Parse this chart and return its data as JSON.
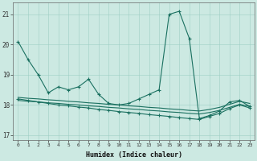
{
  "xlabel": "Humidex (Indice chaleur)",
  "background_color": "#cce9e2",
  "line_color": "#1a7060",
  "grid_color": "#9ecfc4",
  "xlim": [
    -0.5,
    23.5
  ],
  "ylim": [
    16.85,
    21.4
  ],
  "yticks": [
    17,
    18,
    19,
    20,
    21
  ],
  "xticks": [
    0,
    1,
    2,
    3,
    4,
    5,
    6,
    7,
    8,
    9,
    10,
    11,
    12,
    13,
    14,
    15,
    16,
    17,
    18,
    19,
    20,
    21,
    22,
    23
  ],
  "series1": [
    20.1,
    19.5,
    19.0,
    18.4,
    18.6,
    18.5,
    18.6,
    18.85,
    18.35,
    18.05,
    18.0,
    18.05,
    18.2,
    18.35,
    18.5,
    21.0,
    21.1,
    20.2,
    17.55,
    17.65,
    17.8,
    18.1,
    18.15,
    17.95
  ],
  "series2": [
    18.2,
    18.15,
    18.1,
    18.05,
    18.0,
    17.97,
    17.93,
    17.9,
    17.85,
    17.82,
    17.78,
    17.75,
    17.72,
    17.68,
    17.65,
    17.62,
    17.58,
    17.55,
    17.52,
    17.62,
    17.72,
    17.88,
    18.0,
    17.9
  ],
  "series3": [
    18.15,
    18.12,
    18.1,
    18.07,
    18.05,
    18.02,
    18.0,
    17.97,
    17.95,
    17.92,
    17.9,
    17.87,
    17.85,
    17.82,
    17.8,
    17.77,
    17.75,
    17.72,
    17.7,
    17.75,
    17.82,
    17.92,
    18.02,
    17.95
  ],
  "series4": [
    18.25,
    18.22,
    18.2,
    18.17,
    18.15,
    18.12,
    18.1,
    18.07,
    18.05,
    18.02,
    18.0,
    17.97,
    17.95,
    17.92,
    17.9,
    17.87,
    17.85,
    17.82,
    17.8,
    17.85,
    17.92,
    18.02,
    18.12,
    18.05
  ]
}
